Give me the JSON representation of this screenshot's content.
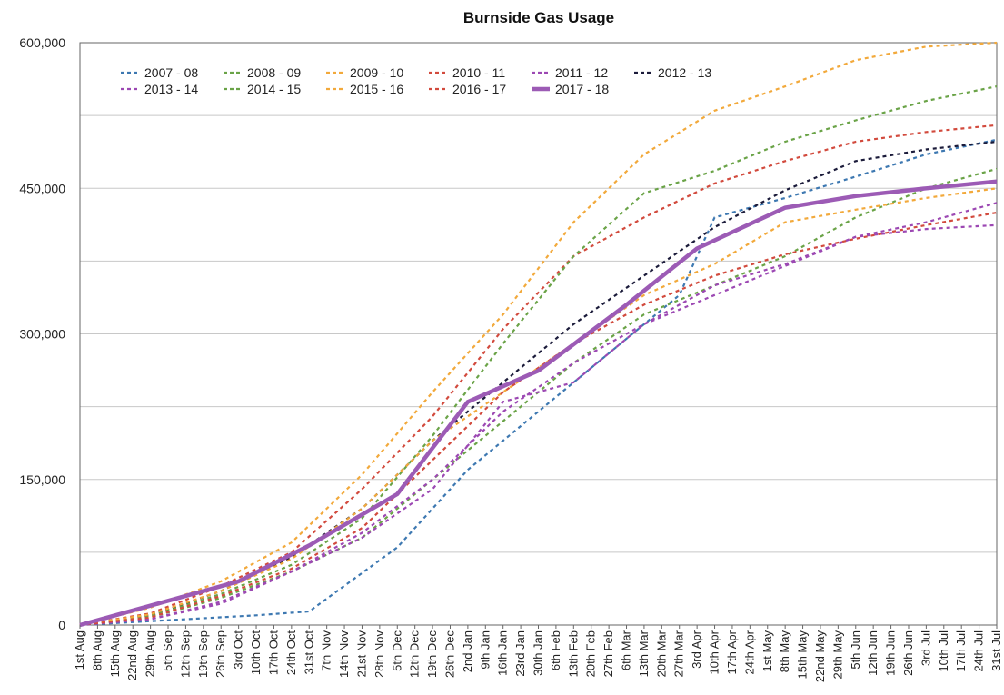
{
  "chart_data": {
    "type": "line",
    "title": "Burnside Gas Usage",
    "xlabel": "",
    "ylabel": "",
    "ylim": [
      0,
      600000
    ],
    "y_ticks": [
      "0",
      "150,000",
      "300,000",
      "450,000",
      "600,000"
    ],
    "grid": true,
    "legend_position": "top-left",
    "categories": [
      "1st Aug",
      "8th Aug",
      "15th Aug",
      "22nd Aug",
      "29th Aug",
      "5th Sep",
      "12th Sep",
      "19th Sep",
      "26th Sep",
      "3rd Oct",
      "10th Oct",
      "17th Oct",
      "24th Oct",
      "31st Oct",
      "7th Nov",
      "14th Nov",
      "21st Nov",
      "28th Nov",
      "5th Dec",
      "12th Dec",
      "19th Dec",
      "26th Dec",
      "2nd Jan",
      "9th Jan",
      "16th Jan",
      "23rd Jan",
      "30th Jan",
      "6th Feb",
      "13th Feb",
      "20th Feb",
      "27th Feb",
      "6th Mar",
      "13th Mar",
      "20th Mar",
      "27th Mar",
      "3rd Apr",
      "10th Apr",
      "17th Apr",
      "24th Apr",
      "1st May",
      "8th May",
      "15th May",
      "22nd May",
      "29th May",
      "5th Jun",
      "12th Jun",
      "19th Jun",
      "26th Jun",
      "3rd Jul",
      "10th Jul",
      "17th Jul",
      "24th Jul",
      "31st Jul"
    ],
    "series": [
      {
        "name": "2007 - 08",
        "color": "#3d78b1",
        "dashed": true,
        "x": [
          0,
          10,
          13,
          18,
          22,
          26,
          30,
          34,
          36,
          40,
          44,
          48,
          52
        ],
        "values": [
          0,
          10000,
          14000,
          80000,
          160000,
          220000,
          280000,
          340000,
          420000,
          440000,
          462000,
          485000,
          500000
        ]
      },
      {
        "name": "2008 - 09",
        "color": "#6aa347",
        "dashed": true,
        "x": [
          0,
          4,
          8,
          12,
          16,
          20,
          24,
          28,
          32,
          36,
          40,
          44,
          48,
          52
        ],
        "values": [
          0,
          8000,
          28000,
          55000,
          90000,
          150000,
          210000,
          270000,
          320000,
          350000,
          380000,
          420000,
          450000,
          470000
        ]
      },
      {
        "name": "2009 - 10",
        "color": "#f2a93b",
        "dashed": true,
        "x": [
          0,
          4,
          8,
          12,
          16,
          20,
          24,
          28,
          32,
          36,
          40,
          44,
          48,
          52
        ],
        "values": [
          0,
          18000,
          45000,
          85000,
          155000,
          240000,
          320000,
          415000,
          485000,
          530000,
          555000,
          582000,
          596000,
          600000
        ]
      },
      {
        "name": "2010 - 11",
        "color": "#d24a3d",
        "dashed": true,
        "x": [
          0,
          4,
          8,
          12,
          16,
          20,
          24,
          28,
          32,
          36,
          40,
          44,
          48,
          52
        ],
        "values": [
          0,
          12000,
          40000,
          75000,
          140000,
          215000,
          305000,
          380000,
          420000,
          455000,
          478000,
          498000,
          508000,
          515000
        ]
      },
      {
        "name": "2011 - 12",
        "color": "#9c48b3",
        "dashed": true,
        "x": [
          0,
          4,
          8,
          12,
          16,
          20,
          24,
          28,
          32,
          36,
          40,
          44,
          48,
          52
        ],
        "values": [
          0,
          6000,
          24000,
          55000,
          95000,
          150000,
          220000,
          270000,
          310000,
          350000,
          372000,
          400000,
          415000,
          435000
        ]
      },
      {
        "name": "2012 - 13",
        "color": "#1b1b3a",
        "dashed": true,
        "x": [
          0,
          4,
          8,
          12,
          16,
          20,
          24,
          28,
          32,
          36,
          40,
          44,
          48,
          52
        ],
        "values": [
          0,
          10000,
          35000,
          70000,
          120000,
          190000,
          250000,
          310000,
          360000,
          410000,
          448000,
          478000,
          490000,
          498000
        ]
      },
      {
        "name": "2013 - 14",
        "color": "#9c48b3",
        "dashed": true,
        "x": [
          0,
          4,
          8,
          12,
          16,
          20,
          24,
          28,
          32,
          36,
          40,
          44,
          48,
          52
        ],
        "values": [
          0,
          6000,
          22000,
          55000,
          90000,
          140000,
          230000,
          250000,
          310000,
          340000,
          370000,
          400000,
          408000,
          412000
        ]
      },
      {
        "name": "2014 - 15",
        "color": "#6aa347",
        "dashed": true,
        "x": [
          0,
          4,
          8,
          12,
          16,
          20,
          24,
          28,
          32,
          36,
          40,
          44,
          48,
          52
        ],
        "values": [
          0,
          9000,
          32000,
          62000,
          110000,
          195000,
          290000,
          380000,
          445000,
          468000,
          498000,
          520000,
          540000,
          555000
        ]
      },
      {
        "name": "2015 - 16",
        "color": "#f2a93b",
        "dashed": true,
        "x": [
          0,
          4,
          8,
          12,
          16,
          20,
          24,
          28,
          32,
          36,
          40,
          44,
          48,
          52
        ],
        "values": [
          0,
          11000,
          35000,
          68000,
          120000,
          190000,
          240000,
          290000,
          340000,
          372000,
          415000,
          428000,
          440000,
          450000
        ]
      },
      {
        "name": "2016 - 17",
        "color": "#d24a3d",
        "dashed": true,
        "x": [
          0,
          4,
          8,
          12,
          16,
          20,
          24,
          28,
          32,
          36,
          40,
          44,
          48,
          52
        ],
        "values": [
          0,
          8000,
          30000,
          58000,
          100000,
          170000,
          240000,
          290000,
          330000,
          360000,
          382000,
          398000,
          412000,
          425000
        ]
      },
      {
        "name": "2017 - 18",
        "color": "#9c5bb5",
        "dashed": false,
        "x": [
          0,
          5,
          9,
          13,
          18,
          22,
          26,
          31,
          35,
          40,
          44,
          48,
          52
        ],
        "values": [
          0,
          25000,
          45000,
          82000,
          135000,
          230000,
          262000,
          330000,
          388000,
          430000,
          442000,
          450000,
          457000
        ]
      }
    ]
  }
}
